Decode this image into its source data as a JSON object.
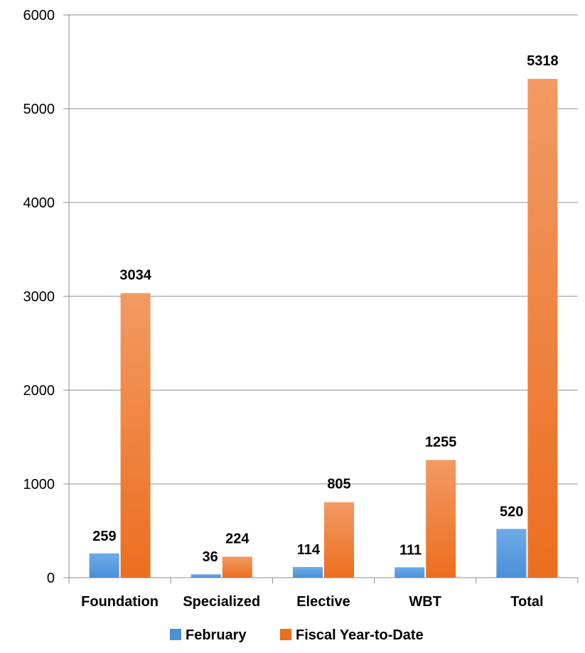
{
  "chart_data": {
    "type": "bar",
    "title": "",
    "xlabel": "",
    "ylabel": "",
    "categories": [
      "Foundation",
      "Specialized",
      "Elective",
      "WBT",
      "Total"
    ],
    "series": [
      {
        "name": "February",
        "values": [
          259,
          36,
          114,
          111,
          520
        ],
        "color": "#4A90D9",
        "color_light": "#6FAAE6"
      },
      {
        "name": "Fiscal Year-to-Date",
        "values": [
          3034,
          224,
          805,
          1255,
          5318
        ],
        "color": "#EC6E1F",
        "color_light": "#F29A63"
      }
    ],
    "ylim": [
      0,
      6000
    ],
    "yticks": [
      "0",
      "1000",
      "2000",
      "3000",
      "4000",
      "5000",
      "6000"
    ],
    "grid": true,
    "legend": "bottom",
    "data_labels": true
  }
}
